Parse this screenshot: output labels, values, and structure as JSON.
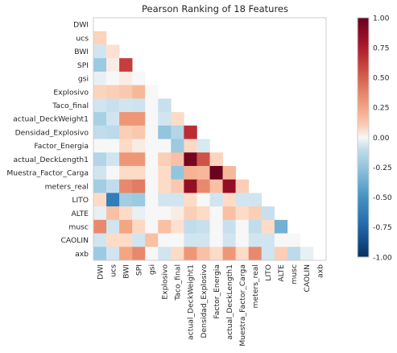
{
  "chart_data": {
    "type": "heatmap",
    "title": "Pearson Ranking of 18 Features",
    "features": [
      "DWI",
      "ucs",
      "BWI",
      "SPI",
      "gsi",
      "Explosivo",
      "Taco_final",
      "actual_DeckWeight1",
      "Densidad_Explosivo",
      "Factor_Energia",
      "actual_DeckLength1",
      "Muestra_Factor_Carga",
      "meters_real",
      "LITO",
      "ALTE",
      "musc",
      "CAOLIN",
      "axb"
    ],
    "lower_triangle": [
      [],
      [
        0.08
      ],
      [
        -0.05,
        0.04
      ],
      [
        -0.22,
        0.02,
        0.62
      ],
      [
        -0.02,
        0.0,
        0.02,
        0.0
      ],
      [
        0.08,
        0.1,
        0.12,
        0.18,
        0.0
      ],
      [
        -0.05,
        -0.08,
        -0.05,
        -0.06,
        0.0,
        -0.08
      ],
      [
        -0.18,
        -0.05,
        0.3,
        0.3,
        0.0,
        -0.05,
        0.05
      ],
      [
        -0.1,
        -0.12,
        0.1,
        0.12,
        0.0,
        -0.25,
        -0.15,
        0.68
      ],
      [
        0.0,
        0.0,
        0.05,
        0.02,
        0.0,
        0.0,
        -0.22,
        0.06,
        -0.04
      ],
      [
        -0.15,
        -0.05,
        0.3,
        0.3,
        0.0,
        0.1,
        0.15,
        0.95,
        0.55,
        0.08
      ],
      [
        -0.05,
        0.0,
        0.05,
        0.05,
        0.0,
        0.05,
        -0.25,
        0.2,
        0.18,
        0.99,
        0.18
      ],
      [
        -0.2,
        -0.1,
        0.35,
        0.4,
        0.0,
        0.05,
        0.12,
        0.85,
        0.35,
        0.15,
        0.85,
        0.1
      ],
      [
        0.05,
        -0.62,
        -0.2,
        -0.22,
        0.0,
        -0.05,
        -0.05,
        0.05,
        0.0,
        -0.05,
        0.05,
        -0.05,
        -0.05
      ],
      [
        -0.02,
        0.15,
        0.05,
        -0.02,
        0.0,
        0.0,
        0.02,
        0.1,
        0.05,
        0.0,
        0.15,
        0.05,
        0.1,
        -0.08
      ],
      [
        0.35,
        -0.05,
        0.25,
        0.06,
        0.0,
        0.15,
        0.04,
        -0.1,
        -0.08,
        0.0,
        -0.08,
        0.0,
        -0.1,
        0.05,
        -0.35
      ],
      [
        -0.05,
        0.05,
        0.05,
        -0.05,
        0.15,
        0.0,
        0.0,
        -0.05,
        -0.05,
        0.0,
        -0.05,
        0.0,
        -0.05,
        -0.05,
        0.0,
        0.0
      ],
      [
        -0.22,
        -0.05,
        0.25,
        0.35,
        0.0,
        -0.05,
        0.05,
        0.3,
        0.15,
        0.05,
        0.3,
        0.05,
        0.35,
        -0.05,
        0.1,
        -0.12,
        -0.02
      ]
    ],
    "colorbar": {
      "range": [
        -1,
        1
      ],
      "ticks": [
        "1.00",
        "0.75",
        "0.50",
        "0.25",
        "0.00",
        "-0.25",
        "-0.50",
        "-0.75",
        "-1.00"
      ],
      "tick_values": [
        1,
        0.75,
        0.5,
        0.25,
        0,
        -0.25,
        -0.5,
        -0.75,
        -1
      ],
      "colormap": "RdBu_r"
    },
    "grid": false
  }
}
